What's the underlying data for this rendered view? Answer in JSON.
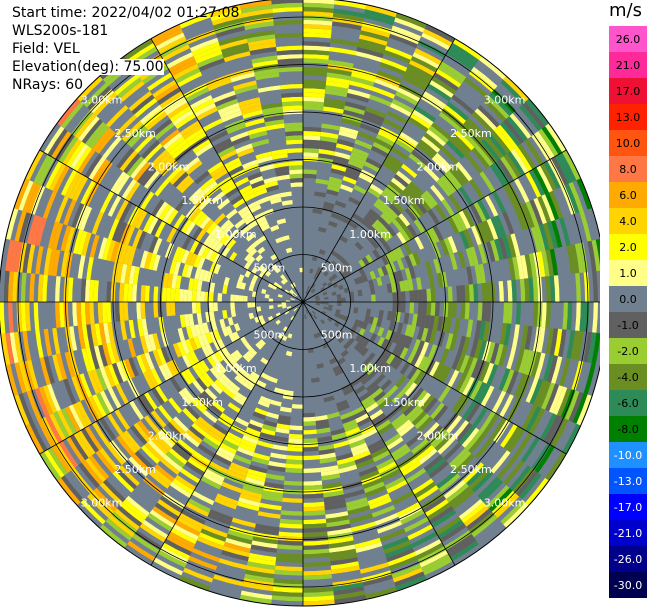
{
  "header": {
    "start_time": "Start time: 2022/04/02 01:27:08",
    "instrument": "WLS200s-181",
    "field": "Field: VEL",
    "elevation": "Elevation(deg): 75.00",
    "nrays": "NRays: 60"
  },
  "chart_data": {
    "type": "heatmap",
    "projection": "polar-ppi",
    "range_rings_labels": [
      "500m",
      "1.00km",
      "1.50km",
      "2.00km",
      "2.50km",
      "3.00km"
    ],
    "range_rings_km": [
      0.5,
      1.0,
      1.5,
      2.0,
      2.5,
      3.0
    ],
    "max_range_km": 3.2,
    "n_rays": 60,
    "colorbar": {
      "unit": "m/s",
      "tick_labels": [
        "26.0",
        "21.0",
        "17.0",
        "13.0",
        "10.0",
        "8.0",
        "6.0",
        "4.0",
        "2.0",
        "1.0",
        "0.0",
        "-1.0",
        "-2.0",
        "-4.0",
        "-6.0",
        "-8.0",
        "-10.0",
        "-13.0",
        "-17.0",
        "-21.0",
        "-26.0",
        "-30.0"
      ],
      "colors": [
        "#ff55cc",
        "#ff2a99",
        "#ee1133",
        "#ff2200",
        "#ff5511",
        "#ff7744",
        "#ffaa00",
        "#ffd400",
        "#ffff00",
        "#ffff88",
        "#708090",
        "#606060",
        "#9acd32",
        "#6b8e23",
        "#2e8b57",
        "#008000",
        "#1e90ff",
        "#0055ff",
        "#0000ff",
        "#0000cd",
        "#00008b",
        "#000050"
      ]
    }
  }
}
